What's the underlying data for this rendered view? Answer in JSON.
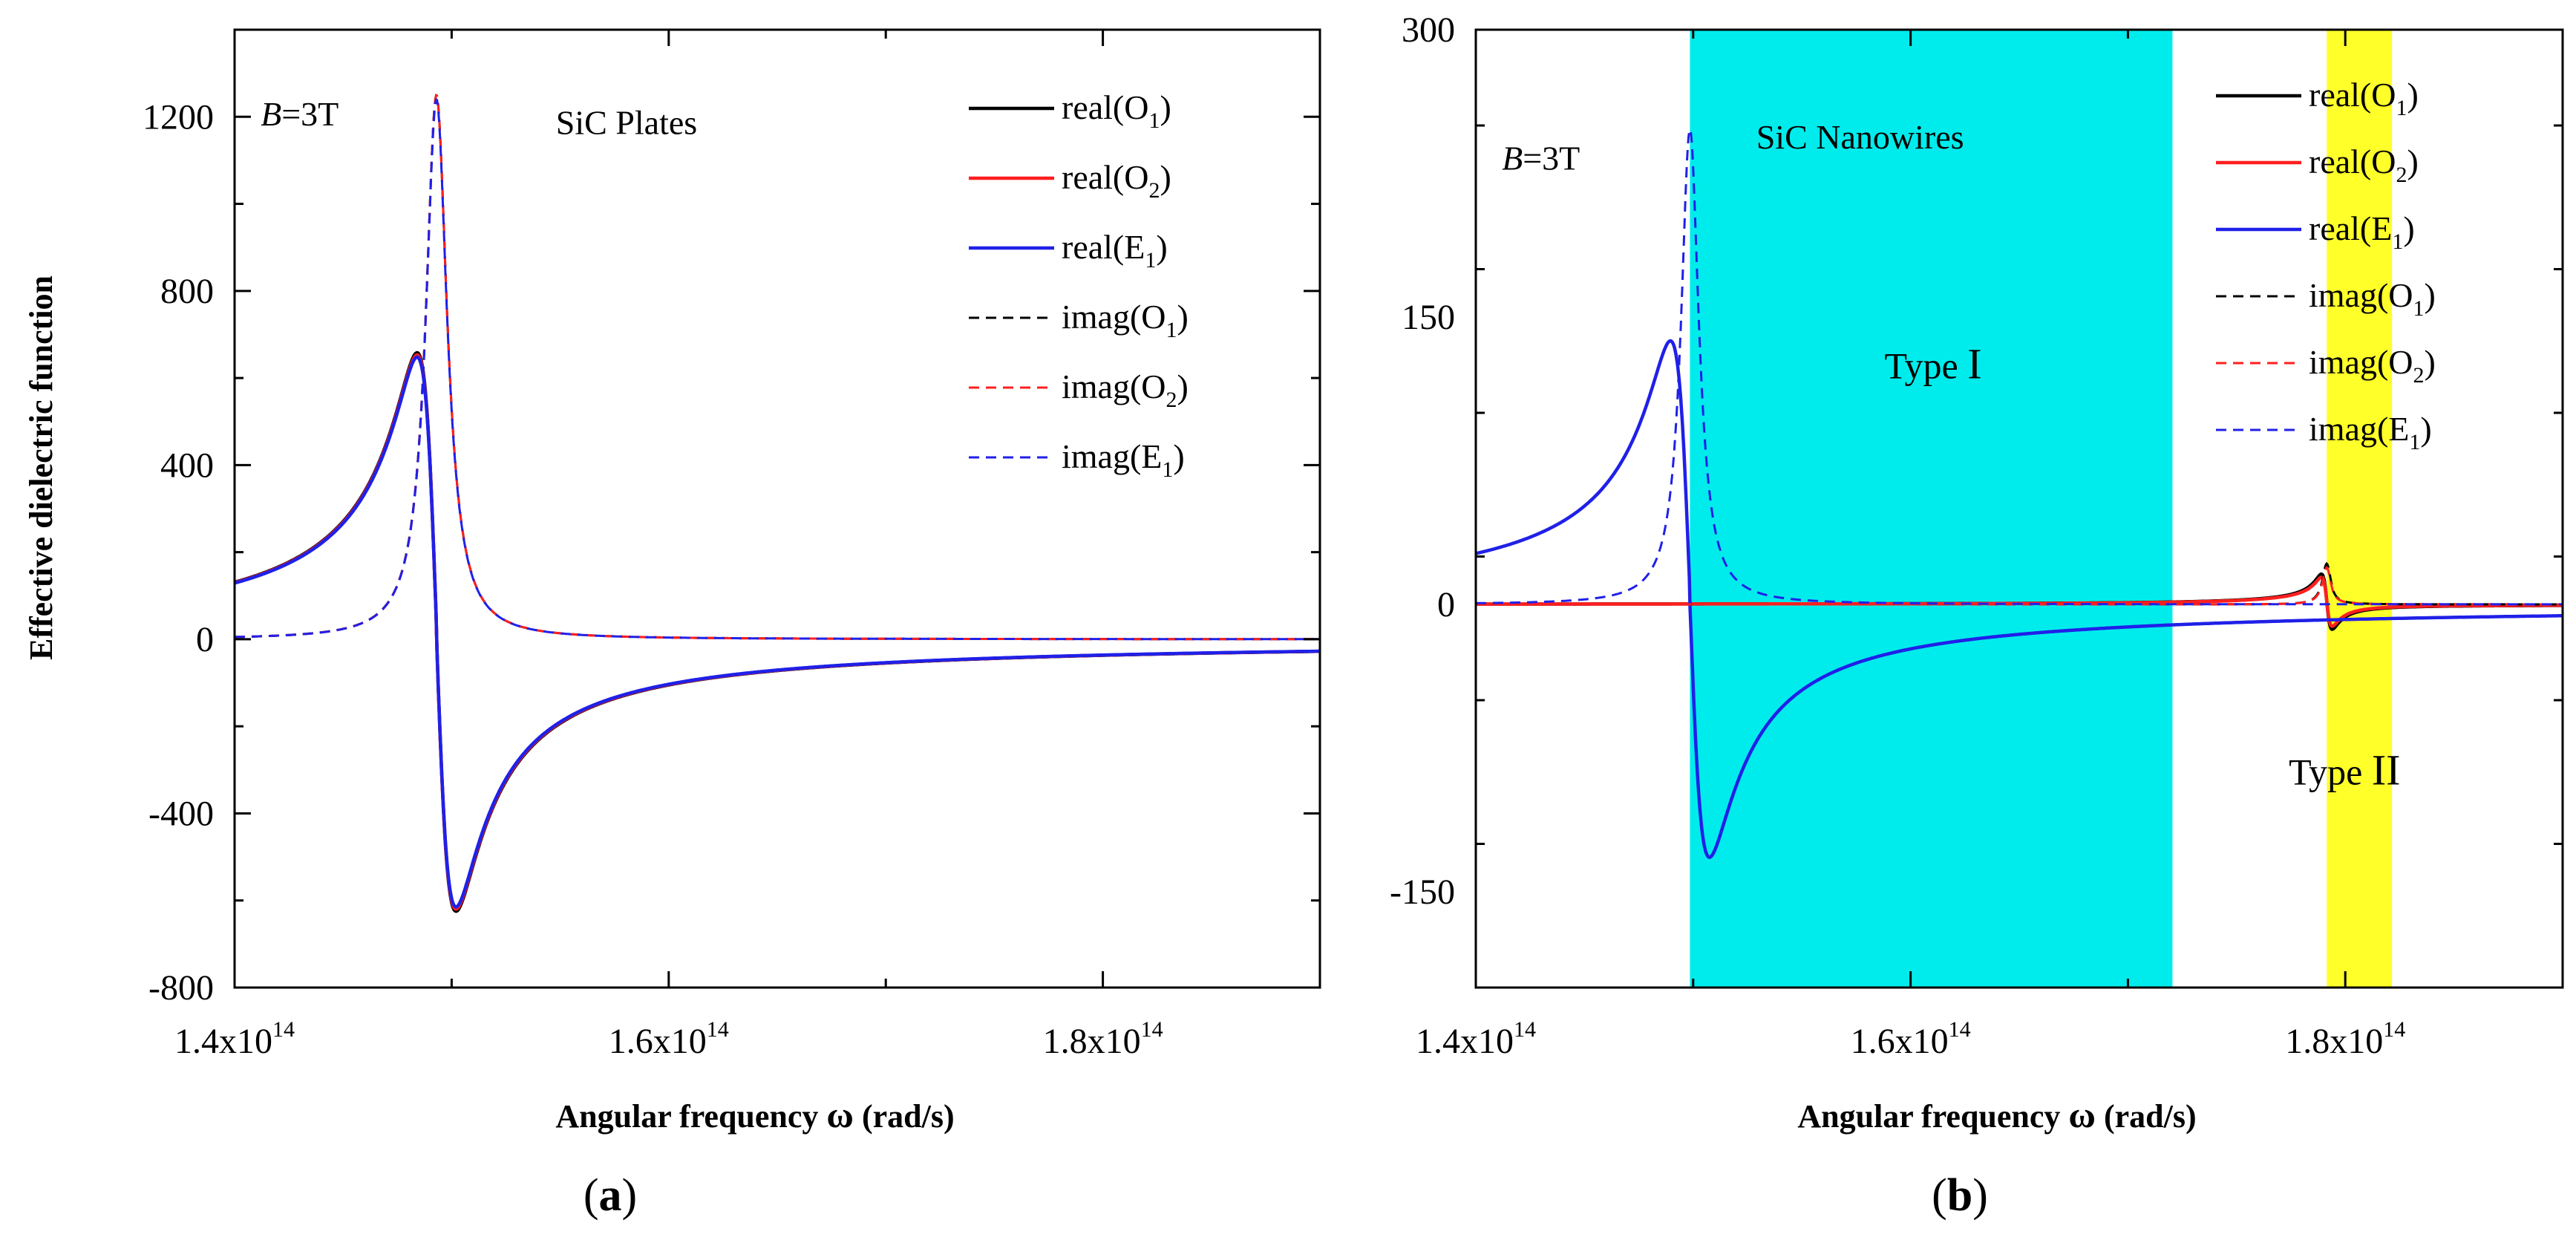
{
  "figure": {
    "colors": {
      "black": "#000000",
      "red": "#ff1f1f",
      "blue": "#2020e8",
      "cyan": "#00ecec",
      "yellow": "#ffff2a"
    }
  },
  "chart_data": [
    {
      "id": "a",
      "type": "line",
      "panel_label": "a",
      "ylabel": "Effective dielectric function",
      "xlabel": {
        "main": "Angular frequency ",
        "symbol": "ω",
        "unit": " (rad/s)"
      },
      "xlim": [
        140000000000000.0,
        190000000000000.0
      ],
      "ylim": [
        -800,
        1400
      ],
      "xticks": [
        {
          "value": 140000000000000.0,
          "mant": "1.4x10",
          "exp": "14"
        },
        {
          "value": 160000000000000.0,
          "mant": "1.6x10",
          "exp": "14"
        },
        {
          "value": 180000000000000.0,
          "mant": "1.8x10",
          "exp": "14"
        }
      ],
      "yticks": [
        {
          "value": -800,
          "label": "-800"
        },
        {
          "value": -400,
          "label": "-400"
        },
        {
          "value": 0,
          "label": "0"
        },
        {
          "value": 400,
          "label": "400"
        },
        {
          "value": 800,
          "label": "800"
        },
        {
          "value": 1200,
          "label": "1200"
        }
      ],
      "annotations": [
        {
          "kind": "field",
          "italic": "B",
          "text": "=3T",
          "x": 141200000000000.0,
          "y": 1180
        },
        {
          "kind": "title",
          "text": "SiC Plates",
          "x": 154800000000000.0,
          "y": 1160
        }
      ],
      "legend_position": "top-right",
      "resonance": {
        "w0": 149300000000000.0,
        "gamma_real": 900000000000.0,
        "real_amp": 620,
        "real_offset": 7,
        "gamma_imag": 600000000000.0,
        "imag_peak": 1250
      },
      "series": [
        {
          "name": "real(O1)",
          "part": "real",
          "label": "real",
          "sub": "1",
          "letter": "O",
          "color": "#000000",
          "dash": false,
          "peak": 630
        },
        {
          "name": "real(O2)",
          "part": "real",
          "label": "real",
          "sub": "2",
          "letter": "O",
          "color": "#ff1f1f",
          "dash": false,
          "peak": 625
        },
        {
          "name": "real(E1)",
          "part": "real",
          "label": "real",
          "sub": "1",
          "letter": "E",
          "color": "#2020e8",
          "dash": false,
          "peak": 620
        },
        {
          "name": "imag(O1)",
          "part": "imag",
          "label": "imag",
          "sub": "1",
          "letter": "O",
          "color": "#000000",
          "dash": true,
          "peak": 1250
        },
        {
          "name": "imag(O2)",
          "part": "imag",
          "label": "imag",
          "sub": "2",
          "letter": "O",
          "color": "#ff1f1f",
          "dash": true,
          "peak": 1250
        },
        {
          "name": "imag(E1)",
          "part": "imag",
          "label": "imag",
          "sub": "1",
          "letter": "E",
          "color": "#2020e8",
          "dash": true,
          "peak": 1240
        }
      ]
    },
    {
      "id": "b",
      "type": "line",
      "panel_label": "b",
      "ylabel": "",
      "xlabel": {
        "main": "Angular frequency ",
        "symbol": "ω",
        "unit": " (rad/s)"
      },
      "xlim": [
        140000000000000.0,
        190000000000000.0
      ],
      "ylim": [
        -200,
        300
      ],
      "xticks": [
        {
          "value": 140000000000000.0,
          "mant": "1.4x10",
          "exp": "14"
        },
        {
          "value": 160000000000000.0,
          "mant": "1.6x10",
          "exp": "14"
        },
        {
          "value": 180000000000000.0,
          "mant": "1.8x10",
          "exp": "14"
        }
      ],
      "yticks": [
        {
          "value": -150,
          "label": "-150"
        },
        {
          "value": 0,
          "label": "0"
        },
        {
          "value": 150,
          "label": "150"
        },
        {
          "value": 300,
          "label": "300"
        }
      ],
      "bands": [
        {
          "name": "Type I",
          "from": 149850000000000.0,
          "to": 172050000000000.0,
          "color": "#00ecec"
        },
        {
          "name": "Type II",
          "from": 179150000000000.0,
          "to": 182150000000000.0,
          "color": "#ffff2a"
        }
      ],
      "annotations": [
        {
          "kind": "field",
          "italic": "B",
          "text": "=3T",
          "x": 141200000000000.0,
          "y": 227
        },
        {
          "kind": "title",
          "text": "SiC Nanowires",
          "x": 152900000000000.0,
          "y": 238
        },
        {
          "kind": "band",
          "text": "Type ",
          "roman": "I",
          "x": 158800000000000.0,
          "y": 118
        },
        {
          "kind": "band",
          "text": "Type ",
          "roman": "II",
          "x": 177400000000000.0,
          "y": -94
        }
      ],
      "legend_position": "top-right",
      "resonance": {
        "w0": 149850000000000.0,
        "gamma_real": 900000000000.0,
        "real_amp": 128,
        "real_offset": 3,
        "gamma_imag": 500000000000.0,
        "imag_peak": 248,
        "w1": 179150000000000.0
      },
      "series": [
        {
          "name": "real(O1)",
          "part": "real",
          "label": "real",
          "sub": "1",
          "letter": "O",
          "color": "#000000",
          "dash": false,
          "peak": 18
        },
        {
          "name": "real(O2)",
          "part": "real",
          "label": "real",
          "sub": "2",
          "letter": "O",
          "color": "#ff1f1f",
          "dash": false,
          "peak": 16
        },
        {
          "name": "real(E1)",
          "part": "real",
          "label": "real",
          "sub": "1",
          "letter": "E",
          "color": "#2020e8",
          "dash": false,
          "peak": 132
        },
        {
          "name": "imag(O1)",
          "part": "imag",
          "label": "imag",
          "sub": "1",
          "letter": "O",
          "color": "#000000",
          "dash": true,
          "peak": 22
        },
        {
          "name": "imag(O2)",
          "part": "imag",
          "label": "imag",
          "sub": "2",
          "letter": "O",
          "color": "#ff1f1f",
          "dash": true,
          "peak": 20
        },
        {
          "name": "imag(E1)",
          "part": "imag",
          "label": "imag",
          "sub": "1",
          "letter": "E",
          "color": "#2020e8",
          "dash": true,
          "peak": 248
        }
      ]
    }
  ]
}
